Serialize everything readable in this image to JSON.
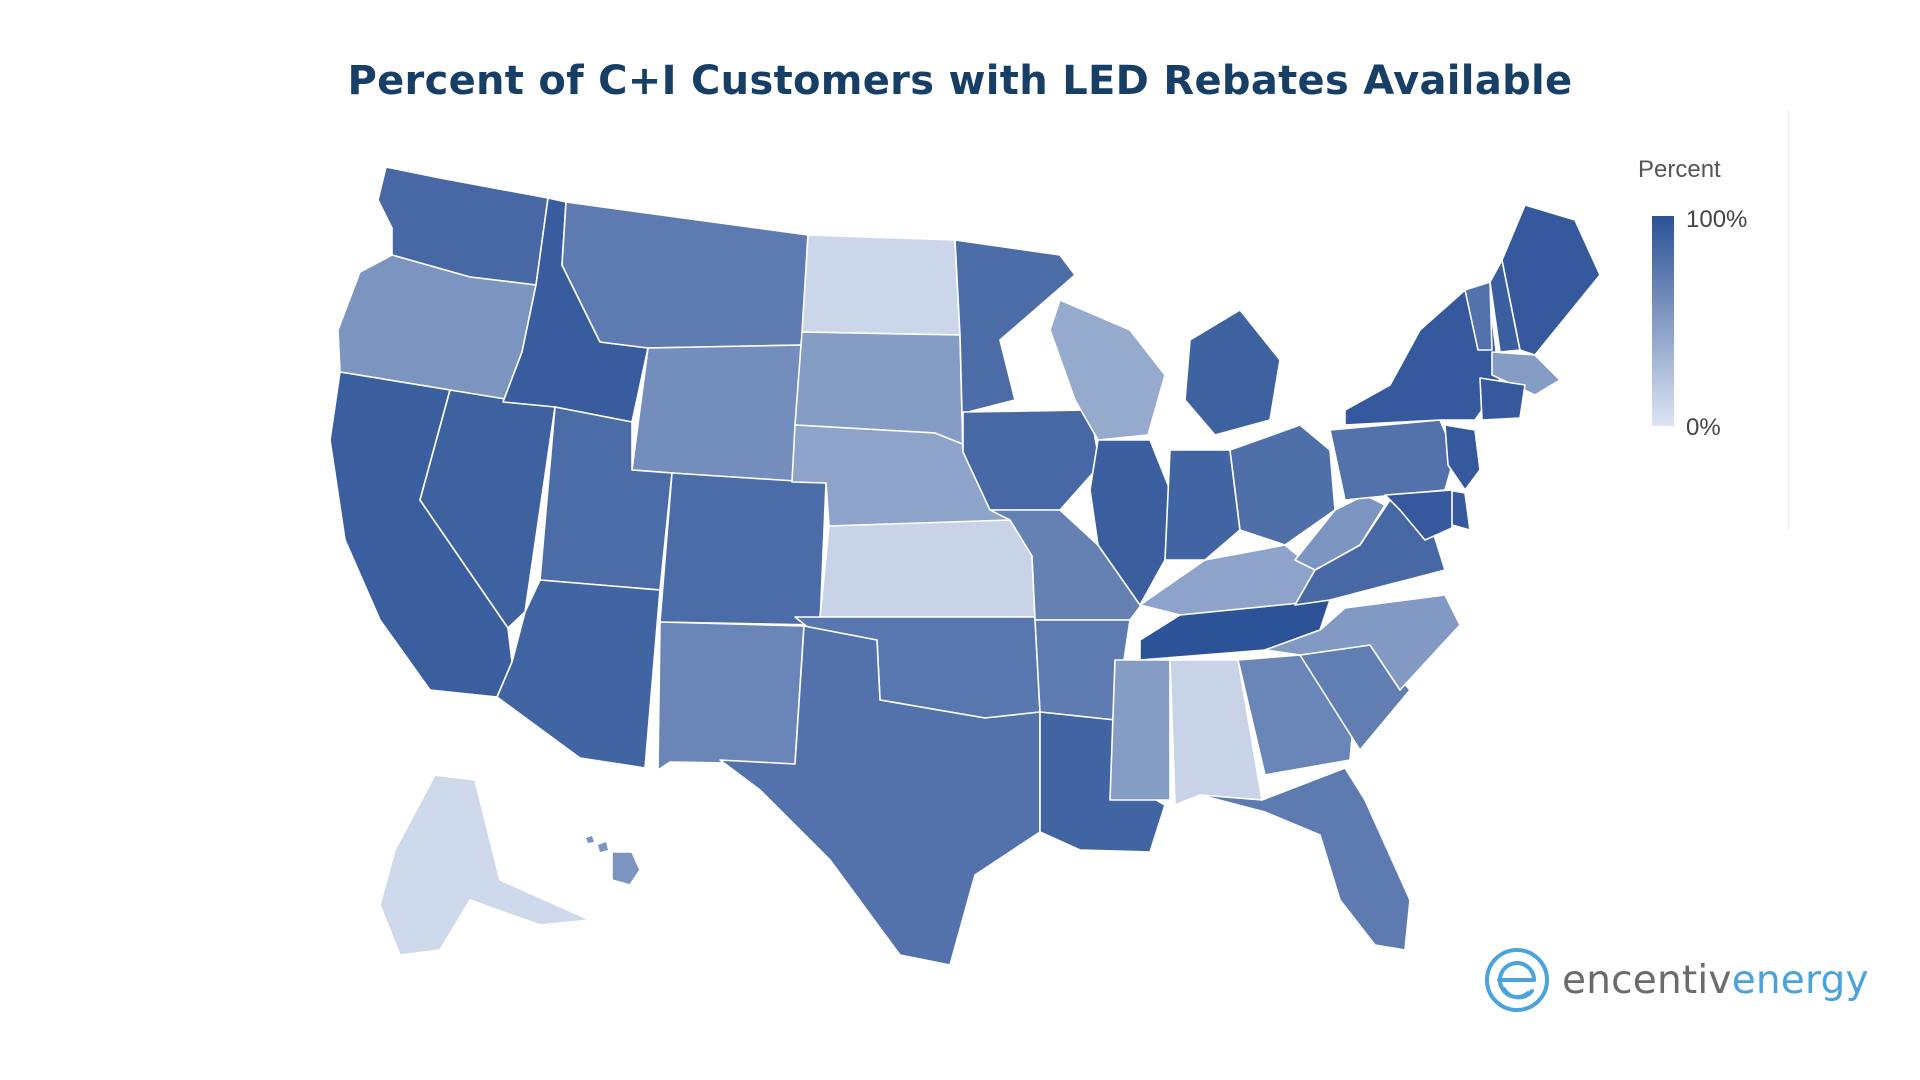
{
  "title": "Percent of  C+I Customers with LED Rebates Available",
  "legend": {
    "title": "Percent",
    "max_label": "100%",
    "min_label": "0%",
    "color_max": "#2c5297",
    "color_min": "#dde5f3"
  },
  "logo": {
    "text_part1": "encentiv",
    "text_part2": "energy",
    "icon": "encentiv-e-logo-icon",
    "text_color": "#6b6b6b",
    "accent_color": "#4aa3dd"
  },
  "chart_data": {
    "type": "choropleth",
    "metric": "Percent",
    "scale": [
      0,
      100
    ],
    "regions": [
      {
        "state": "WA",
        "value": 85
      },
      {
        "state": "OR",
        "value": 55
      },
      {
        "state": "CA",
        "value": 92
      },
      {
        "state": "NV",
        "value": 90
      },
      {
        "state": "ID",
        "value": 93
      },
      {
        "state": "MT",
        "value": 72
      },
      {
        "state": "WY",
        "value": 60
      },
      {
        "state": "UT",
        "value": 82
      },
      {
        "state": "AZ",
        "value": 88
      },
      {
        "state": "CO",
        "value": 82
      },
      {
        "state": "NM",
        "value": 65
      },
      {
        "state": "ND",
        "value": 10
      },
      {
        "state": "SD",
        "value": 50
      },
      {
        "state": "NE",
        "value": 45
      },
      {
        "state": "KS",
        "value": 12
      },
      {
        "state": "OK",
        "value": 75
      },
      {
        "state": "TX",
        "value": 78
      },
      {
        "state": "MN",
        "value": 82
      },
      {
        "state": "IA",
        "value": 85
      },
      {
        "state": "MO",
        "value": 68
      },
      {
        "state": "AR",
        "value": 72
      },
      {
        "state": "LA",
        "value": 88
      },
      {
        "state": "WI",
        "value": 40
      },
      {
        "state": "IL",
        "value": 92
      },
      {
        "state": "MI",
        "value": 90
      },
      {
        "state": "IN",
        "value": 88
      },
      {
        "state": "OH",
        "value": 80
      },
      {
        "state": "KY",
        "value": 45
      },
      {
        "state": "TN",
        "value": 100
      },
      {
        "state": "MS",
        "value": 50
      },
      {
        "state": "AL",
        "value": 12
      },
      {
        "state": "GA",
        "value": 65
      },
      {
        "state": "FL",
        "value": 72
      },
      {
        "state": "SC",
        "value": 70
      },
      {
        "state": "NC",
        "value": 52
      },
      {
        "state": "VA",
        "value": 85
      },
      {
        "state": "WV",
        "value": 55
      },
      {
        "state": "PA",
        "value": 78
      },
      {
        "state": "NY",
        "value": 95
      },
      {
        "state": "VT",
        "value": 78
      },
      {
        "state": "NH",
        "value": 92
      },
      {
        "state": "ME",
        "value": 95
      },
      {
        "state": "MA",
        "value": 50
      },
      {
        "state": "CT",
        "value": 95
      },
      {
        "state": "NJ",
        "value": 95
      },
      {
        "state": "DE",
        "value": 95
      },
      {
        "state": "MD",
        "value": 95
      },
      {
        "state": "AK",
        "value": 8
      },
      {
        "state": "HI",
        "value": 55
      }
    ]
  }
}
